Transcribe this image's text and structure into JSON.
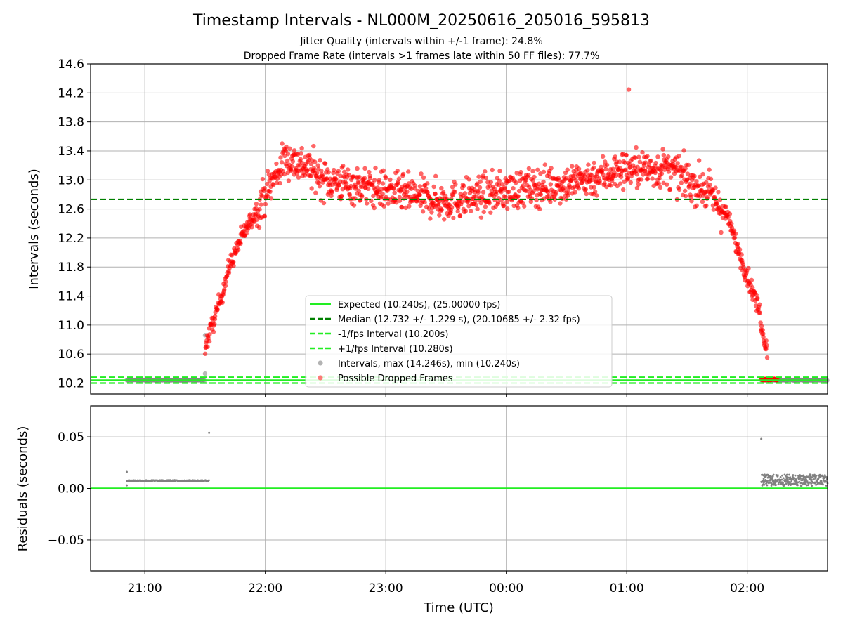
{
  "chart_data": [
    {
      "type": "scatter",
      "title": "Timestamp Intervals - NL000M_20250616_205016_595813",
      "subtitle_lines": [
        "Jitter Quality (intervals within +/-1 frame): 24.8%",
        "Dropped Frame Rate (intervals >1 frames late within 50 FF files): 77.7%"
      ],
      "xlabel": "",
      "ylabel": "Intervals (seconds)",
      "xlim": [
        "20:33",
        "02:40"
      ],
      "ylim": [
        10.05,
        14.6
      ],
      "yticks": [
        "10.2",
        "10.6",
        "11.0",
        "11.4",
        "11.8",
        "12.2",
        "12.6",
        "13.0",
        "13.4",
        "13.8",
        "14.2",
        "14.6"
      ],
      "grid": true,
      "legend_position": "lower-center",
      "reference_lines": [
        {
          "name": "Expected (10.240s), (25.00000 fps)",
          "y": 10.24,
          "style": "solid",
          "color": "#22ee22"
        },
        {
          "name": "Median (12.732 +/- 1.229 s), (20.10685 +/- 2.32 fps)",
          "y": 12.732,
          "style": "dashed",
          "color": "#008000"
        },
        {
          "name": "-1/fps Interval (10.200s)",
          "y": 10.2,
          "style": "dashed",
          "color": "#22ee22"
        },
        {
          "name": "+1/fps Interval (10.280s)",
          "y": 10.28,
          "style": "dashed",
          "color": "#22ee22"
        }
      ],
      "series": [
        {
          "name": "Intervals, max (14.246s), min (10.240s)",
          "color": "#808080",
          "points": [
            [
              "20:51",
              10.24
            ],
            [
              "20:58",
              10.24
            ],
            [
              "21:05",
              10.24
            ],
            [
              "21:12",
              10.24
            ],
            [
              "21:19",
              10.24
            ],
            [
              "21:26",
              10.24
            ],
            [
              "21:30",
              10.33
            ],
            [
              "21:30",
              10.86
            ],
            [
              "02:07",
              10.29
            ],
            [
              "02:20",
              10.24
            ],
            [
              "02:30",
              10.24
            ],
            [
              "02:40",
              10.24
            ]
          ]
        },
        {
          "name": "Possible Dropped Frames",
          "color": "#ff0000",
          "trend": [
            [
              "21:30",
              10.7
            ],
            [
              "21:36",
              11.2
            ],
            [
              "21:42",
              11.8
            ],
            [
              "21:48",
              12.2
            ],
            [
              "21:54",
              12.5
            ],
            [
              "22:00",
              12.8
            ],
            [
              "22:10",
              13.3
            ],
            [
              "22:20",
              13.2
            ],
            [
              "22:30",
              13.0
            ],
            [
              "23:00",
              12.85
            ],
            [
              "23:30",
              12.7
            ],
            [
              "00:00",
              12.85
            ],
            [
              "00:30",
              12.95
            ],
            [
              "01:00",
              13.15
            ],
            [
              "01:20",
              13.15
            ],
            [
              "01:40",
              12.85
            ],
            [
              "01:50",
              12.5
            ],
            [
              "01:56",
              12.0
            ],
            [
              "02:01",
              11.6
            ],
            [
              "02:06",
              11.2
            ],
            [
              "02:08",
              10.85
            ],
            [
              "02:10",
              10.7
            ]
          ],
          "spread": 0.25,
          "max": 14.246,
          "dropped_at_floor": [
            [
              "02:07",
              10.25
            ],
            [
              "02:15",
              10.25
            ]
          ]
        }
      ]
    },
    {
      "type": "scatter",
      "title": "",
      "xlabel": "Time (UTC)",
      "ylabel": "Residuals (seconds)",
      "xticks": [
        "21:00",
        "22:00",
        "23:00",
        "00:00",
        "01:00",
        "02:00"
      ],
      "ylim": [
        -0.08,
        0.08
      ],
      "yticks": [
        "0.05",
        "0.00",
        "−0.05"
      ],
      "grid": true,
      "reference_lines": [
        {
          "y": 0.0,
          "color": "#22ee22",
          "style": "solid"
        }
      ],
      "series": [
        {
          "name": "",
          "color": "#808080",
          "segments": [
            {
              "x_start": "20:51",
              "x_end": "21:32",
              "y": 0.0075
            },
            {
              "x_start": "02:07",
              "x_end": "02:40",
              "y": 0.008
            }
          ],
          "outliers": [
            [
              "20:51",
              0.016
            ],
            [
              "20:51",
              0.003
            ],
            [
              "21:32",
              0.054
            ],
            [
              "02:07",
              0.048
            ]
          ]
        }
      ]
    }
  ],
  "legend": {
    "entries": [
      {
        "label": "Expected (10.240s), (25.00000 fps)",
        "marker": "solid-line",
        "color": "#22ee22"
      },
      {
        "label": "Median (12.732 +/- 1.229 s), (20.10685 +/- 2.32 fps)",
        "marker": "dashed-line",
        "color": "#008000"
      },
      {
        "label": "-1/fps Interval (10.200s)",
        "marker": "dashed-line",
        "color": "#22ee22"
      },
      {
        "label": "+1/fps Interval (10.280s)",
        "marker": "dashed-line",
        "color": "#22ee22"
      },
      {
        "label": "Intervals, max (14.246s), min (10.240s)",
        "marker": "dot",
        "color": "#a0a0a0"
      },
      {
        "label": "Possible Dropped Frames",
        "marker": "dot",
        "color": "#ff5a5a"
      }
    ]
  }
}
